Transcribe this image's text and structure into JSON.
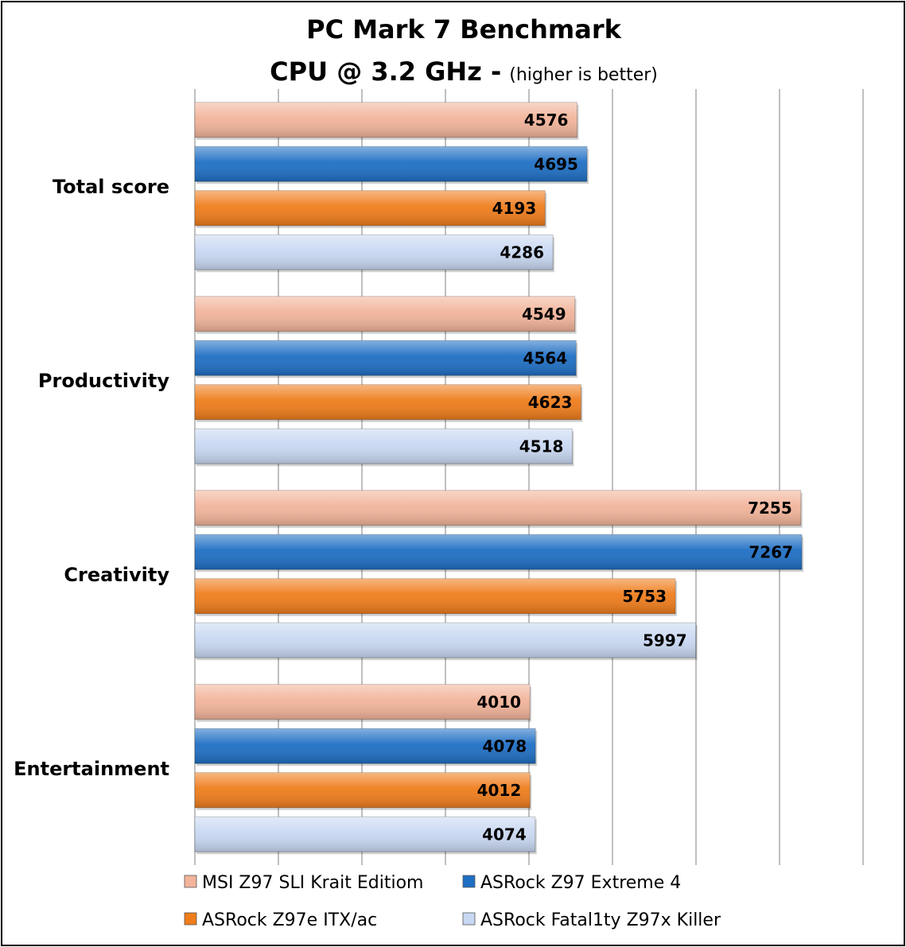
{
  "chart_data": {
    "type": "bar",
    "orientation": "horizontal",
    "title": "PC Mark 7 Benchmark",
    "subtitle": "CPU @ 3.2 GHz -",
    "subtitle_note": "(higher is better)",
    "categories": [
      "Total score",
      "Productivity",
      "Creativity",
      "Entertainment"
    ],
    "series": [
      {
        "name": "MSI Z97 SLI Krait Editiom",
        "color": "#f2b49a",
        "values": [
          4576,
          4549,
          7255,
          4010
        ]
      },
      {
        "name": "ASRock Z97 Extreme 4",
        "color": "#1f6fc4",
        "values": [
          4695,
          4564,
          7267,
          4078
        ]
      },
      {
        "name": "ASRock Z97e ITX/ac",
        "color": "#ef7d1c",
        "values": [
          4193,
          4623,
          5753,
          4012
        ]
      },
      {
        "name": "ASRock Fatal1ty Z97x Killer",
        "color": "#c9d8f2",
        "values": [
          4286,
          4518,
          5997,
          4074
        ]
      }
    ],
    "xlim": [
      0,
      8000
    ],
    "x_gridlines": true,
    "x_tick_labels_shown": false,
    "legend_position": "bottom"
  }
}
